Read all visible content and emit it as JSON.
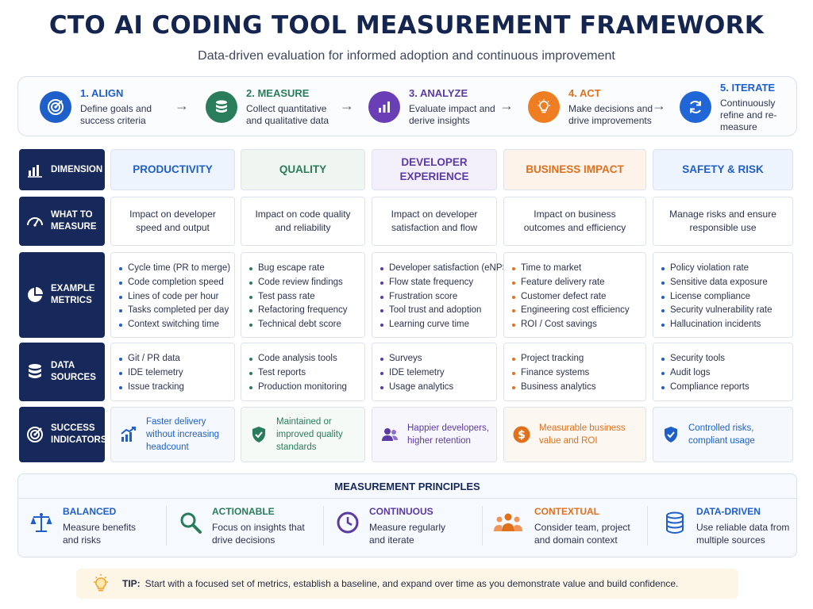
{
  "header": {
    "title": "CTO AI CODING TOOL MEASUREMENT FRAMEWORK",
    "subtitle": "Data-driven evaluation for informed adoption and continuous improvement"
  },
  "steps": [
    {
      "title": "1. ALIGN",
      "desc": "Define goals and success criteria",
      "color": "#1f5fc9",
      "icon": "target-icon"
    },
    {
      "title": "2. MEASURE",
      "desc": "Collect quantitative and qualitative data",
      "color": "#2a7d5a",
      "icon": "database-icon"
    },
    {
      "title": "3. ANALYZE",
      "desc": "Evaluate impact and derive insights",
      "color": "#6a3fb5",
      "icon": "bar-chart-icon"
    },
    {
      "title": "4. ACT",
      "desc": "Make decisions and drive improvements",
      "color": "#ef7d22",
      "icon": "lightbulb-icon"
    },
    {
      "title": "5. ITERATE",
      "desc": "Continuously refine and re-measure",
      "color": "#2066d6",
      "icon": "refresh-icon"
    }
  ],
  "row_labels": {
    "dimension": "DIMENSION",
    "what": "WHAT TO MEASURE",
    "metrics": "EXAMPLE METRICS",
    "sources": "DATA SOURCES",
    "success": "SUCCESS INDICATORS"
  },
  "columns": [
    {
      "header": "PRODUCTIVITY",
      "color": "#1f5fc9",
      "bg": "#eef4fd",
      "what": "Impact on developer speed and output",
      "metrics": [
        "Cycle time (PR to merge)",
        "Code completion speed",
        "Lines of code per hour",
        "Tasks completed per day",
        "Context switching time"
      ],
      "sources": [
        "Git / PR data",
        "IDE telemetry",
        "Issue tracking"
      ],
      "success": "Faster delivery without increasing headcount",
      "success_icon": "growth-chart-icon"
    },
    {
      "header": "QUALITY",
      "color": "#2a7d5a",
      "bg": "#eff6f2",
      "what": "Impact on code quality and reliability",
      "metrics": [
        "Bug escape rate",
        "Code review findings",
        "Test pass rate",
        "Refactoring frequency",
        "Technical debt score"
      ],
      "sources": [
        "Code analysis tools",
        "Test reports",
        "Production monitoring"
      ],
      "success": "Maintained or improved quality standards",
      "success_icon": "shield-check-icon"
    },
    {
      "header": "DEVELOPER EXPERIENCE",
      "color": "#5b3aa5",
      "bg": "#f3f0fb",
      "what": "Impact on developer satisfaction and flow",
      "metrics": [
        "Developer satisfaction (eNPS)",
        "Flow state frequency",
        "Frustration score",
        "Tool trust and adoption",
        "Learning curve time"
      ],
      "sources": [
        "Surveys",
        "IDE telemetry",
        "Usage analytics"
      ],
      "success": "Happier developers, higher retention",
      "success_icon": "users-icon"
    },
    {
      "header": "BUSINESS IMPACT",
      "color": "#e0701c",
      "bg": "#fdf3ea",
      "what": "Impact on business outcomes and efficiency",
      "metrics": [
        "Time to market",
        "Feature delivery rate",
        "Customer defect rate",
        "Engineering cost efficiency",
        "ROI / Cost savings"
      ],
      "sources": [
        "Project tracking",
        "Finance systems",
        "Business analytics"
      ],
      "success": "Measurable business value and ROI",
      "success_icon": "dollar-icon"
    },
    {
      "header": "SAFETY & RISK",
      "color": "#1f5fc9",
      "bg": "#eef4fd",
      "what": "Manage risks and ensure responsible use",
      "metrics": [
        "Policy violation rate",
        "Sensitive data exposure",
        "License compliance",
        "Security vulnerability rate",
        "Hallucination incidents"
      ],
      "sources": [
        "Security tools",
        "Audit logs",
        "Compliance reports"
      ],
      "success": "Controlled risks, compliant usage",
      "success_icon": "shield-check-icon"
    }
  ],
  "principles": {
    "title": "MEASUREMENT PRINCIPLES",
    "items": [
      {
        "title": "BALANCED",
        "desc": "Measure benefits and risks",
        "color": "#1f5fc9",
        "icon": "scale-icon"
      },
      {
        "title": "ACTIONABLE",
        "desc": "Focus on insights that drive decisions",
        "color": "#2a7d5a",
        "icon": "magnifier-icon"
      },
      {
        "title": "CONTINUOUS",
        "desc": "Measure regularly and iterate",
        "color": "#5b3aa5",
        "icon": "clock-icon"
      },
      {
        "title": "CONTEXTUAL",
        "desc": "Consider team, project and domain context",
        "color": "#e0701c",
        "icon": "team-icon"
      },
      {
        "title": "DATA-DRIVEN",
        "desc": "Use reliable data from multiple sources",
        "color": "#1f5fc9",
        "icon": "database-icon"
      }
    ]
  },
  "tip": {
    "label": "TIP:",
    "text": "Start with a focused set of metrics, establish a baseline, and expand over time as you demonstrate value and build confidence."
  }
}
